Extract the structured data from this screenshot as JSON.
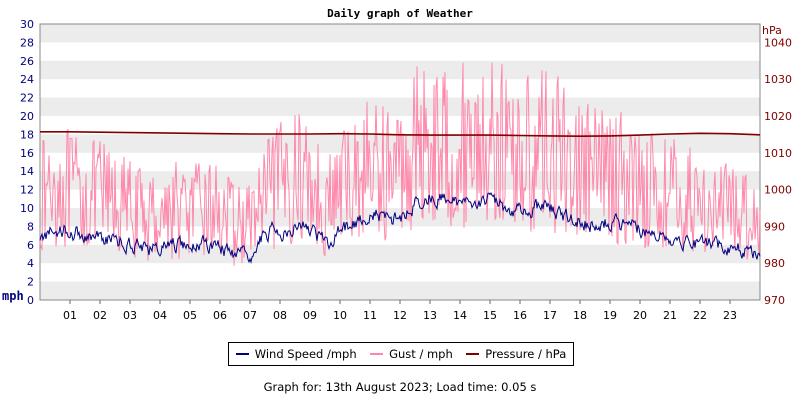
{
  "chart_data": {
    "type": "line",
    "title": "Daily graph of Weather",
    "ylabel": "mph",
    "ylabel_right": "hPa",
    "ylim": [
      0,
      30
    ],
    "ylim_right": [
      970,
      1045
    ],
    "yticks": [
      0,
      2,
      4,
      6,
      8,
      10,
      12,
      14,
      16,
      18,
      20,
      22,
      24,
      26,
      28,
      30
    ],
    "yticks_right": [
      970,
      980,
      990,
      1000,
      1010,
      1020,
      1030,
      1040
    ],
    "xlim": [
      0,
      24
    ],
    "xticks": [
      "01",
      "02",
      "03",
      "04",
      "05",
      "06",
      "07",
      "08",
      "09",
      "10",
      "11",
      "12",
      "13",
      "14",
      "15",
      "16",
      "17",
      "18",
      "19",
      "20",
      "21",
      "22",
      "23"
    ],
    "grid": "alternating horizontal bands",
    "legend_position": "bottom",
    "series": [
      {
        "name": "Wind Speed /mph",
        "color": "#000080",
        "axis": "left",
        "x": [
          0,
          0.5,
          1,
          1.5,
          2,
          2.5,
          3,
          3.5,
          4,
          4.5,
          5,
          5.5,
          6,
          6.5,
          7,
          7.5,
          8,
          8.5,
          9,
          9.5,
          10,
          10.5,
          11,
          11.5,
          12,
          12.5,
          13,
          13.5,
          14,
          14.5,
          15,
          15.5,
          16,
          16.5,
          17,
          17.5,
          18,
          18.5,
          19,
          19.5,
          20,
          20.5,
          21,
          21.5,
          22,
          22.5,
          23,
          23.5,
          24
        ],
        "values": [
          6.5,
          7.8,
          7.5,
          7.0,
          6.8,
          6.5,
          6.2,
          5.8,
          5.5,
          6.0,
          5.8,
          6.2,
          6.0,
          4.5,
          4.8,
          7.2,
          7.5,
          8.2,
          7.8,
          6.0,
          7.5,
          8.5,
          9.2,
          9.0,
          8.8,
          10.5,
          11.2,
          10.8,
          10.5,
          11.0,
          10.8,
          10.2,
          9.8,
          10.0,
          10.2,
          9.0,
          8.5,
          8.2,
          8.5,
          8.0,
          7.8,
          7.2,
          6.8,
          6.5,
          6.2,
          6.0,
          5.8,
          5.5,
          5.2
        ]
      },
      {
        "name": "Gust / mph",
        "color": "#ff88aa",
        "axis": "left",
        "x": [
          0,
          0.5,
          1,
          1.5,
          2,
          2.5,
          3,
          3.5,
          4,
          4.5,
          5,
          5.5,
          6,
          6.5,
          7,
          7.5,
          8,
          8.5,
          9,
          9.5,
          10,
          10.5,
          11,
          11.5,
          12,
          12.5,
          13,
          13.5,
          14,
          14.5,
          15,
          15.5,
          16,
          16.5,
          17,
          17.5,
          18,
          18.5,
          19,
          19.5,
          20,
          20.5,
          21,
          21.5,
          22,
          22.5,
          23,
          23.5,
          24
        ],
        "values": [
          11.0,
          12.5,
          12.0,
          11.0,
          11.5,
          10.5,
          10.0,
          9.0,
          9.5,
          10.0,
          9.5,
          10.0,
          9.8,
          8.0,
          8.5,
          11.0,
          12.5,
          13.5,
          13.0,
          10.0,
          12.0,
          13.5,
          14.5,
          14.0,
          14.0,
          16.5,
          17.5,
          16.5,
          16.5,
          17.5,
          17.0,
          16.5,
          15.5,
          16.0,
          16.5,
          15.0,
          14.5,
          13.5,
          14.0,
          13.0,
          12.5,
          12.0,
          11.5,
          11.0,
          10.5,
          10.0,
          9.8,
          9.5,
          9.0
        ]
      },
      {
        "name": "Pressure / hPa",
        "color": "#800000",
        "axis": "right",
        "x": [
          0,
          1,
          2,
          3,
          4,
          5,
          6,
          7,
          8,
          9,
          10,
          11,
          12,
          13,
          14,
          15,
          16,
          17,
          18,
          19,
          20,
          21,
          22,
          23,
          24
        ],
        "values": [
          1015.7,
          1015.7,
          1015.6,
          1015.5,
          1015.4,
          1015.3,
          1015.2,
          1015.1,
          1015.1,
          1015.1,
          1015.2,
          1015.1,
          1014.9,
          1014.8,
          1014.8,
          1014.8,
          1014.7,
          1014.6,
          1014.5,
          1014.6,
          1014.8,
          1015.1,
          1015.3,
          1015.2,
          1014.9
        ]
      }
    ]
  },
  "footer": "Graph for: 13th August 2023; Load time: 0.05 s"
}
